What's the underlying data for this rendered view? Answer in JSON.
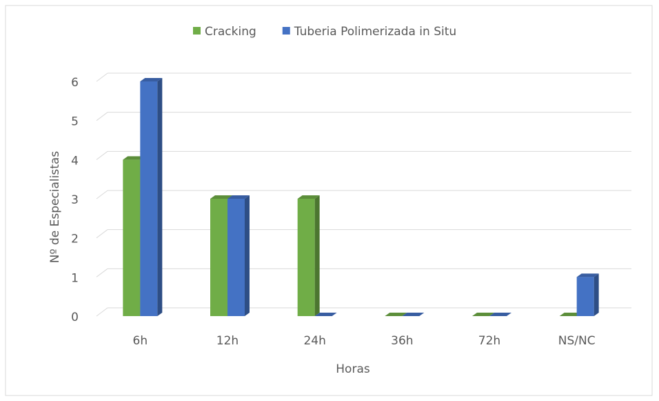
{
  "chart_data": {
    "type": "bar3d",
    "categories": [
      "6h",
      "12h",
      "24h",
      "36h",
      "72h",
      "NS/NC"
    ],
    "series": [
      {
        "name": "Cracking",
        "color": "#70ad47",
        "values": [
          4,
          3,
          3,
          0,
          0,
          0
        ]
      },
      {
        "name": "Tuberia Polimerizada in Situ",
        "color": "#4472c4",
        "values": [
          6,
          3,
          0,
          0,
          0,
          1
        ]
      }
    ],
    "ylim": [
      0,
      6
    ],
    "yticks": [
      0,
      1,
      2,
      3,
      4,
      5,
      6
    ],
    "xlabel": "Horas",
    "ylabel": "Nº de Especialistas",
    "grid": true,
    "legend": "top"
  }
}
